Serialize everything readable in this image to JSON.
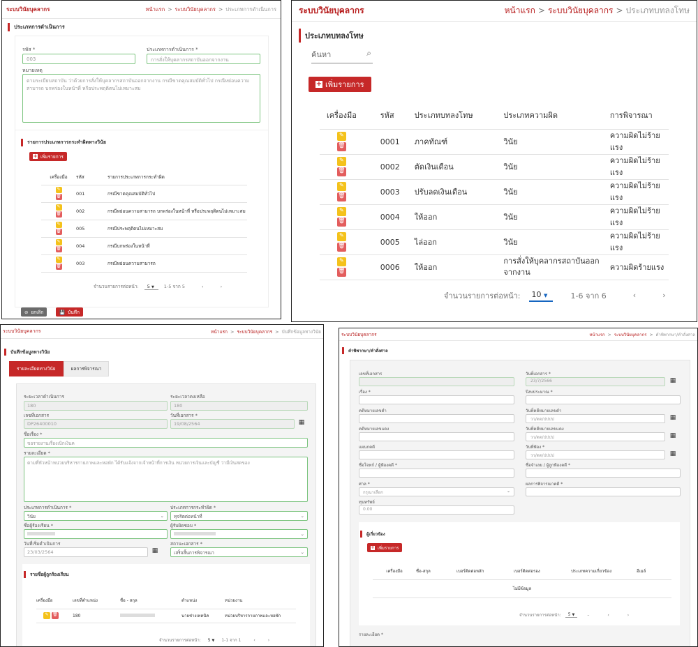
{
  "common": {
    "brand": "ระบบวินัยบุคลากร",
    "home": "หน้าแรก",
    "sep": ">",
    "module": "ระบบวินัยบุคลากร"
  },
  "p1": {
    "crumb_current": "ประเภทการดำเนินการ",
    "title": "ประเภทการดำเนินการ",
    "code_label": "รหัส *",
    "code_value": "003",
    "type_label": "ประเภทการดำเนินการ *",
    "type_value": "การสั่งให้บุคลากรสถาบันออกจากงาน",
    "note_label": "หมายเหตุ",
    "note_value": "ตามระเบียบสถาบัน ว่าด้วยการสั่งให้บุคลากรสถาบันออกจากงาน กรณีขาดคุณสมบัติทั่วไป กรณีหย่อนความสามารถ บกพร่องในหน้าที่ หรือประพฤติตนไม่เหมาะสม",
    "sub_title": "รายการประเภทการกระทำผิดทางวินัย",
    "add": "เพิ่มรายการ",
    "headers": [
      "เครื่องมือ",
      "รหัส",
      "รายการประเภทการกระทำผิด"
    ],
    "rows": [
      {
        "code": "001",
        "name": "กรณีขาดคุณสมบัติทั่วไป"
      },
      {
        "code": "002",
        "name": "กรณีหย่อนความสามารถ บกพร่องในหน้าที่ หรือประพฤติตนไม่เหมาะสม"
      },
      {
        "code": "005",
        "name": "กรณีประพฤติตนไม่เหมาะสม"
      },
      {
        "code": "004",
        "name": "กรณีบกพร่องในหน้าที่"
      },
      {
        "code": "003",
        "name": "กรณีหย่อนความสามารถ"
      }
    ],
    "per_page_label": "จำนวนรายการต่อหน้า:",
    "per_page": "5",
    "range": "1-5 จาก 5",
    "cancel": "ยกเลิก",
    "save": "บันทึก"
  },
  "p2": {
    "crumb_current": "ประเภทบทลงโทษ",
    "title": "ประเภทบทลงโทษ",
    "search_placeholder": "ค้นหา",
    "add": "เพิ่มรายการ",
    "headers": [
      "เครื่องมือ",
      "รหัส",
      "ประเภทบทลงโทษ",
      "ประเภทความผิด",
      "การพิจารณา"
    ],
    "rows": [
      {
        "code": "0001",
        "penalty": "ภาคทัณฑ์",
        "type": "วินัย",
        "consider": "ความผิดไม่ร้ายแรง"
      },
      {
        "code": "0002",
        "penalty": "ตัดเงินเดือน",
        "type": "วินัย",
        "consider": "ความผิดไม่ร้ายแรง"
      },
      {
        "code": "0003",
        "penalty": "ปรับลดเงินเดือน",
        "type": "วินัย",
        "consider": "ความผิดไม่ร้ายแรง"
      },
      {
        "code": "0004",
        "penalty": "ให้ออก",
        "type": "วินัย",
        "consider": "ความผิดไม่ร้ายแรง"
      },
      {
        "code": "0005",
        "penalty": "ไล่ออก",
        "type": "วินัย",
        "consider": "ความผิดไม่ร้ายแรง"
      },
      {
        "code": "0006",
        "penalty": "ให้ออก",
        "type": "การสั่งให้บุคลากรสถาบันออกจากงาน",
        "consider": "ความผิดร้ายแรง"
      }
    ],
    "per_page_label": "จำนวนรายการต่อหน้า:",
    "per_page": "10",
    "range": "1-6 จาก 6"
  },
  "p3": {
    "crumb_current": "บันทึกข้อมูลทางวินัย",
    "title": "บันทึกข้อมูลทางวินัย",
    "tab1": "รายละเอียดทางวินัย",
    "tab2": "ผลการพิจารณา",
    "duration_label": "ระยะเวลาดำเนินการ",
    "duration_value": "180",
    "remaining_label": "ระยะเวลาคงเหลือ",
    "remaining_value": "180",
    "docno_label": "เลขที่เอกสาร",
    "docno_value": "DP26400010",
    "docdate_label": "วันที่เอกสาร *",
    "docdate_value": "19/08/2564",
    "subject_label": "ชื่อเรื่อง *",
    "subject_value": "ขอรายงานเรื่องเบิกเงินค",
    "detail_label": "รายละเอียด *",
    "detail_value": "ตามที่หัวหน้าหน่วยบริหารกายภาพและหอพัก ได้รับแจ้งจากเจ้าหน้าที่การเงิน หน่วยการเงินและบัญชี ว่ามีเงินสดของ",
    "optype_label": "ประเภทการดำเนินการ *",
    "optype_value": "วินัย",
    "offtype_label": "ประเภทการกระทำผิด *",
    "offtype_value": "ทุจริตต่อหน้าที่",
    "complainant_label": "ชื่อผู้ร้องเรียน *",
    "responsible_label": "ผู้รับผิดชอบ *",
    "startdate_label": "วันที่เริ่มดำเนินการ",
    "startdate_value": "23/03/2564",
    "status_label": "สถานะเอกสาร *",
    "status_value": "เสร็จสิ้นการพิจารณา",
    "sub_title": "รายชื่อผู้ถูกร้องเรียน",
    "headers": [
      "เครื่องมือ",
      "เลขที่ตำแหน่ง",
      "ชื่อ - สกุล",
      "ตำแหน่ง",
      "หน่วยงาน"
    ],
    "row": {
      "pos": "180",
      "title": "นายช่างเทคนิค",
      "unit": "หน่วยบริหารกายภาพและหอพัก"
    },
    "per_page_label": "จำนวนรายการต่อหน้า:",
    "per_page": "5",
    "range": "1-1 จาก 1"
  },
  "p4": {
    "crumb_current": "คำพิพากษา/คำสั่งศาล",
    "title": "คำพิพากษา/คำสั่งศาล",
    "docno_label": "เลขที่เอกสาร",
    "docdate_label": "วันที่เอกสาร *",
    "docdate_value": "23/7/2566",
    "subject_label": "เรื่อง *",
    "budget_label": "ปีงบประมาณ *",
    "blackcase_label": "คดีหมายเลขดำ",
    "blackdate_label": "วันที่คดีหมายเลขดำ",
    "redcase_label": "คดีหมายเลขแดง",
    "reddate_label": "วันที่คดีหมายเลขแดง",
    "date_placeholder": "วว/ดด/ปปปป",
    "casetype_label": "แผนกคดี",
    "filing_label": "วันที่ฟ้อง *",
    "plaintiff_label": "ชื่อโจทก์ / ผู้ฟ้องคดี *",
    "defendant_label": "ชื่อจำเลย / ผู้ถูกฟ้องคดี *",
    "court_label": "ศาล *",
    "court_placeholder": "กรุณาเลือก",
    "result_label": "ผลการพิจารณาคดี *",
    "capital_label": "ทุนทรัพย์",
    "capital_value": "0.00",
    "sub_title": "ผู้เกี่ยวข้อง",
    "add": "เพิ่มรายการ",
    "headers": [
      "เครื่องมือ",
      "ชื่อ-สกุล",
      "เบอร์ติดต่อหลัก",
      "เบอร์ติดต่อรอง",
      "ประเภทความเกี่ยวข้อง",
      "อีเมล์"
    ],
    "empty": "ไม่มีข้อมูล",
    "per_page_label": "จำนวนรายการต่อหน้า:",
    "per_page": "5",
    "range": "–",
    "detail_label": "รายละเอียด *"
  }
}
